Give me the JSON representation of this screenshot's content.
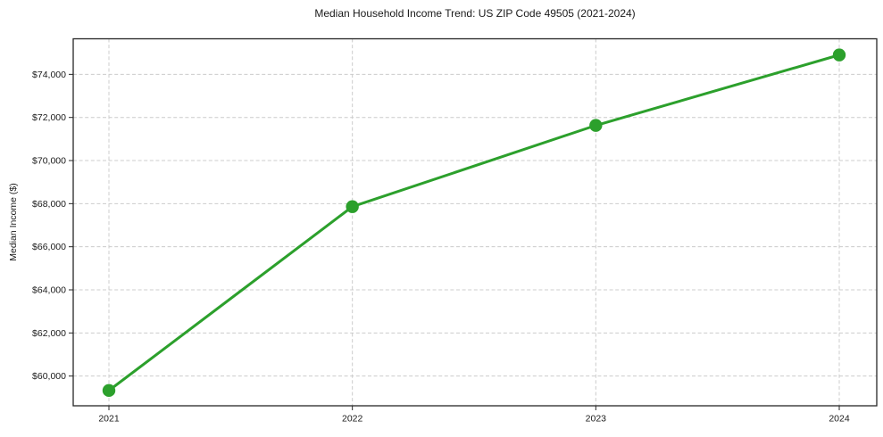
{
  "figure": {
    "title": "Median Household Income Trend: US ZIP Code 49505 (2021-2024)",
    "y_axis_label": "Median Income ($)"
  },
  "colors": {
    "line": "#2ca02c",
    "grid": "#cccccc",
    "axis": "#262626",
    "text": "#1a1a1a",
    "background": "#ffffff"
  },
  "chart_data": {
    "type": "line",
    "title": "Median Household Income Trend: US ZIP Code 49505 (2021-2024)",
    "xlabel": "",
    "ylabel": "Median Income ($)",
    "x": [
      2021,
      2022,
      2023,
      2024
    ],
    "x_tick_labels": [
      "2021",
      "2022",
      "2023",
      "2024"
    ],
    "values": [
      59330,
      67860,
      71630,
      74900
    ],
    "y_ticks": [
      60000,
      62000,
      64000,
      66000,
      68000,
      70000,
      72000,
      74000
    ],
    "y_tick_labels": [
      "$60,000",
      "$62,000",
      "$64,000",
      "$66,000",
      "$68,000",
      "$70,000",
      "$72,000",
      "$74,000"
    ],
    "ylim": [
      58620,
      75650
    ],
    "grid": true,
    "grid_style": "dashed",
    "legend": false,
    "marker": "circle",
    "line_color": "#2ca02c"
  }
}
